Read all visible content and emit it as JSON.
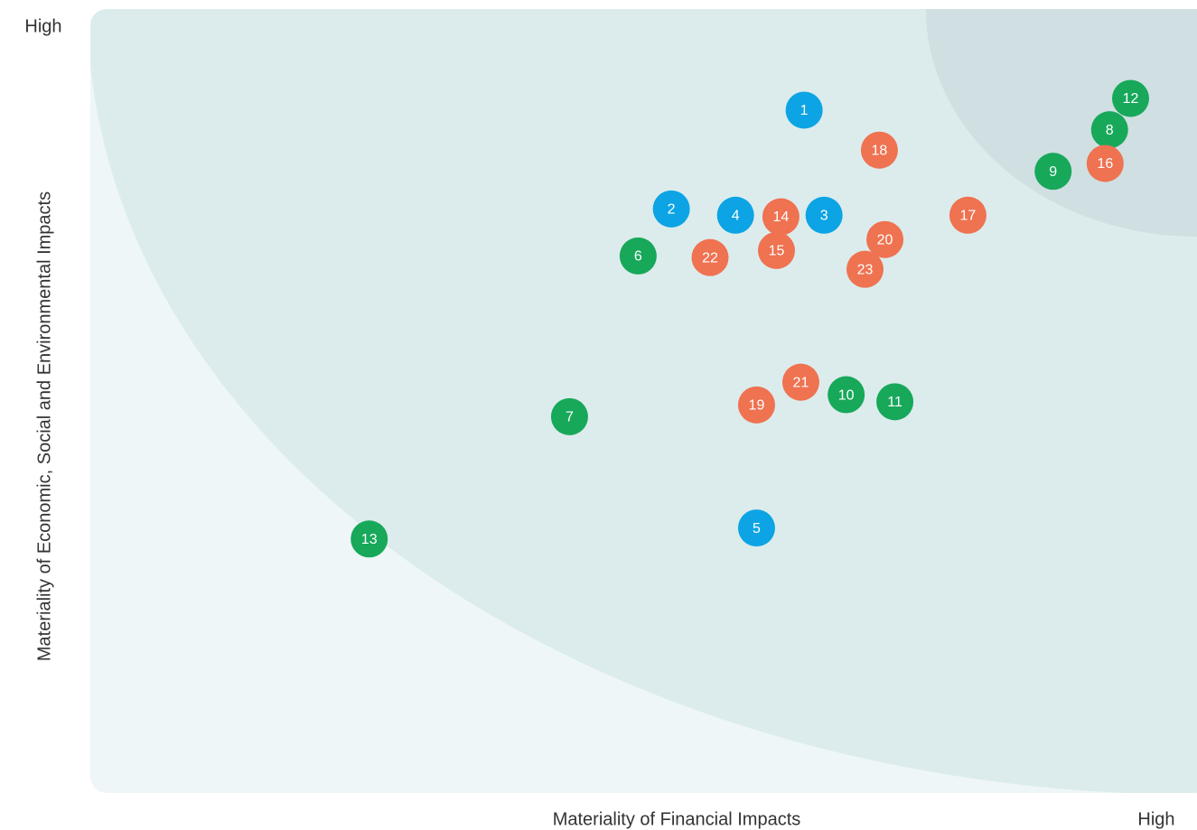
{
  "chart_data": {
    "type": "scatter",
    "x_label": "Materiality of Financial Impacts",
    "y_label": "Materiality of Economic, Social and Environmental Impacts",
    "x_high_label": "High",
    "y_high_label": "High",
    "xlim": [
      0,
      100
    ],
    "ylim": [
      0,
      100
    ],
    "series": [
      {
        "color": "#0ca4e4",
        "labels": [
          "1",
          "2",
          "3",
          "4",
          "5"
        ],
        "x": [
          64.5,
          52.5,
          66.3,
          58.3,
          60.2
        ],
        "y": [
          87.1,
          74.5,
          73.7,
          73.7,
          33.8
        ]
      },
      {
        "color": "#17a85a",
        "labels": [
          "6",
          "7",
          "8",
          "9",
          "10",
          "11",
          "12",
          "13"
        ],
        "x": [
          49.5,
          43.3,
          92.1,
          87.0,
          68.3,
          72.7,
          94.0,
          25.2
        ],
        "y": [
          68.5,
          48.0,
          84.6,
          79.3,
          50.8,
          49.9,
          88.6,
          32.4
        ]
      },
      {
        "color": "#ef7251",
        "labels": [
          "14",
          "15",
          "16",
          "17",
          "18",
          "19",
          "20",
          "21",
          "22",
          "23"
        ],
        "x": [
          62.4,
          62.0,
          91.7,
          79.3,
          71.3,
          60.2,
          71.8,
          64.2,
          56.0,
          70.0
        ],
        "y": [
          73.5,
          69.2,
          80.3,
          73.7,
          82.0,
          49.5,
          70.6,
          52.4,
          68.3,
          66.8
        ]
      }
    ]
  }
}
